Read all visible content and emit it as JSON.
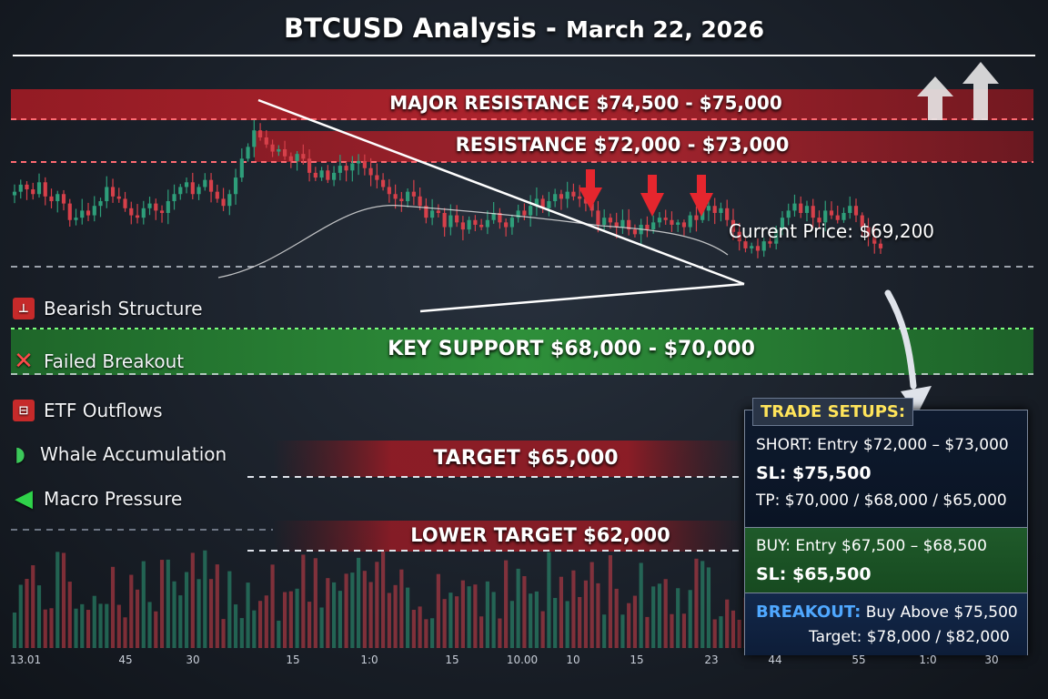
{
  "header": {
    "title": "BTCUSD Analysis",
    "separator": "-",
    "date": "March 22, 2026"
  },
  "levels": {
    "major_resistance": "MAJOR RESISTANCE  $74,500 - $75,000",
    "resistance": "RESISTANCE  $72,000 - $73,000",
    "key_support": "KEY SUPPORT  $68,000 - $70,000",
    "target": "TARGET  $65,000",
    "lower_target": "LOWER TARGET  $62,000",
    "current_price": "Current Price: $69,200"
  },
  "legend": [
    {
      "icon": "bearish-structure-icon",
      "glyph": "⊥",
      "style": "box",
      "label": "Bearish Structure"
    },
    {
      "icon": "failed-breakout-icon",
      "glyph": "✕",
      "style": "x",
      "label": "Failed Breakout"
    },
    {
      "icon": "etf-outflows-icon",
      "glyph": "⊟",
      "style": "box",
      "label": "ETF Outflows"
    },
    {
      "icon": "whale-icon",
      "glyph": "◗",
      "style": "whale",
      "label": "Whale Accumulation"
    },
    {
      "icon": "left-arrow-icon",
      "glyph": "◀",
      "style": "arrow",
      "label": "Macro Pressure"
    }
  ],
  "trade_setups": {
    "header": "TRADE SETUPS:",
    "short_entry": "SHORT: Entry $72,000 – $73,000",
    "short_sl": "SL: $75,500",
    "short_tp": "TP: $70,000 / $68,000 / $65,000",
    "buy_entry": "BUY: Entry $67,500 – $68,500",
    "buy_sl": "SL: $65,500",
    "breakout_label": "BREAKOUT:",
    "breakout_text": "Buy Above $75,500",
    "breakout_target": "Target: $78,000 / $82,000"
  },
  "x_axis_ticks": [
    "13.01",
    "45",
    "30",
    "15",
    "1:0",
    "15",
    "10.00",
    "10",
    "15",
    "23",
    "44",
    "55",
    "1:0",
    "30"
  ],
  "colors": {
    "bull": "#2e9e7a",
    "bear": "#d6404a",
    "resistance_band": "#b4212a",
    "support_band": "#2e9a3a",
    "trendline": "#ffffff"
  },
  "chart_data": {
    "type": "candlestick",
    "ylim": [
      61000,
      76500
    ],
    "resistance_zones": [
      [
        74500,
        75000
      ],
      [
        72000,
        73000
      ]
    ],
    "support_zone": [
      68000,
      70000
    ],
    "targets": [
      65000,
      62000
    ],
    "current_price": 69200,
    "close": [
      71000,
      71300,
      71100,
      70900,
      71400,
      70800,
      70600,
      70900,
      70500,
      69800,
      69900,
      70200,
      70000,
      70400,
      70600,
      71200,
      70800,
      70700,
      70300,
      70000,
      69900,
      70300,
      70500,
      70200,
      70100,
      70600,
      70900,
      71200,
      71400,
      70900,
      71200,
      71500,
      71000,
      70700,
      70400,
      70900,
      71600,
      72400,
      72900,
      73600,
      73300,
      73000,
      72700,
      72800,
      72500,
      72300,
      72600,
      72400,
      71800,
      71600,
      71900,
      71500,
      71800,
      72100,
      71900,
      72200,
      72300,
      72000,
      71700,
      71500,
      71200,
      70900,
      70700,
      70600,
      71000,
      70800,
      70400,
      69900,
      70200,
      70100,
      69500,
      70000,
      69700,
      69400,
      69800,
      69600,
      69500,
      69800,
      70100,
      69700,
      69500,
      69900,
      70200,
      70000,
      70400,
      70700,
      70300,
      70600,
      70900,
      70700,
      71000,
      70800,
      70700,
      70500,
      70200,
      69600,
      69900,
      69700,
      69500,
      69800,
      69400,
      69200,
      69600,
      69400,
      69700,
      69900,
      69800,
      69600,
      69700,
      69500,
      70000,
      69800,
      70200,
      70400,
      70100,
      70300,
      69800,
      69300,
      68900,
      68600,
      68700,
      68500,
      68900,
      68800,
      69400,
      69900,
      70200,
      70500,
      70100,
      70400,
      69900,
      69700,
      70200,
      70000,
      69800,
      70100,
      70400,
      70000,
      69500,
      69100,
      68800,
      68600
    ]
  }
}
